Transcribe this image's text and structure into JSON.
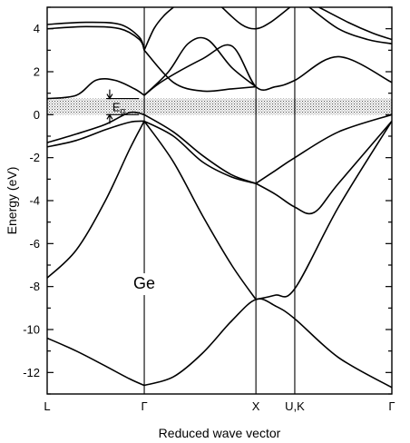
{
  "chart_data": {
    "type": "line",
    "title": "",
    "xlabel": "Reduced wave vector",
    "ylabel": "Energy (eV)",
    "ylim": [
      -13,
      5
    ],
    "yticks": [
      4,
      2,
      0,
      -2,
      -4,
      -6,
      -8,
      -10,
      -12
    ],
    "ytick_labels": [
      "4",
      "2",
      "0",
      "-2",
      "-4",
      "-6",
      "-8",
      "-10",
      "-12"
    ],
    "k_points": [
      {
        "label": "L",
        "x": 0.0
      },
      {
        "label": "Γ",
        "x": 1.0
      },
      {
        "label": "X",
        "x": 2.15
      },
      {
        "label": "U,K",
        "x": 2.55
      },
      {
        "label": "Γ",
        "x": 3.55
      }
    ],
    "annotations": [
      {
        "text": "Ge",
        "x": 1.0,
        "y": -8.1
      },
      {
        "text": "Eg",
        "x": 0.7,
        "y": 0.35
      }
    ],
    "band_gap": {
      "from": 0.0,
      "to": 0.75,
      "label": "Eg"
    },
    "series": [
      {
        "x": [
          0,
          0.3,
          0.6,
          0.85,
          1.0
        ],
        "y": [
          -10.4,
          -11.0,
          -11.7,
          -12.3,
          -12.6
        ]
      },
      {
        "x": [
          1.0,
          1.3,
          1.6,
          1.9,
          2.15,
          2.35,
          2.55,
          3.0,
          3.55
        ],
        "y": [
          -12.6,
          -12.2,
          -11.1,
          -9.6,
          -8.6,
          -8.9,
          -9.5,
          -11.3,
          -12.7
        ]
      },
      {
        "x": [
          0,
          0.3,
          0.6,
          0.85,
          1.0
        ],
        "y": [
          -7.6,
          -6.3,
          -4.0,
          -1.6,
          -0.3
        ]
      },
      {
        "x": [
          1.0,
          1.3,
          1.6,
          1.9,
          2.15
        ],
        "y": [
          -0.3,
          -2.2,
          -4.7,
          -7.0,
          -8.6
        ]
      },
      {
        "x": [
          2.15,
          2.35,
          2.55,
          3.0,
          3.55
        ],
        "y": [
          -8.6,
          -8.4,
          -8.1,
          -4.3,
          -0.3
        ]
      },
      {
        "x": [
          0,
          0.3,
          0.6,
          0.85,
          1.0
        ],
        "y": [
          -1.5,
          -1.2,
          -0.7,
          -0.35,
          -0.3
        ]
      },
      {
        "x": [
          1.0,
          1.3,
          1.6,
          1.9,
          2.15
        ],
        "y": [
          -0.3,
          -1.0,
          -2.2,
          -2.9,
          -3.2
        ]
      },
      {
        "x": [
          2.15,
          2.35,
          2.55,
          2.75,
          3.0,
          3.55
        ],
        "y": [
          -3.2,
          -3.7,
          -4.3,
          -4.55,
          -3.2,
          -0.3
        ]
      },
      {
        "x": [
          0,
          0.3,
          0.6,
          0.85,
          1.0
        ],
        "y": [
          -1.3,
          -0.9,
          -0.45,
          0.1,
          0.0
        ]
      },
      {
        "x": [
          1.0,
          1.3,
          1.6,
          1.9,
          2.15
        ],
        "y": [
          0.0,
          -0.8,
          -1.9,
          -2.8,
          -3.2
        ]
      },
      {
        "x": [
          2.15,
          2.35,
          2.55,
          3.0,
          3.55
        ],
        "y": [
          -3.2,
          -2.6,
          -2.0,
          -0.8,
          0.0
        ]
      },
      {
        "x": [
          0,
          0.3,
          0.5,
          0.7,
          0.9,
          1.0
        ],
        "y": [
          0.75,
          0.9,
          1.6,
          1.6,
          1.2,
          0.9
        ]
      },
      {
        "x": [
          1.0,
          1.25,
          1.45,
          1.65,
          1.9,
          2.15
        ],
        "y": [
          0.9,
          2.0,
          3.3,
          3.5,
          2.2,
          1.3
        ]
      },
      {
        "x": [
          1.0,
          1.2,
          1.6,
          1.9,
          2.15,
          2.35,
          2.55,
          3.0,
          3.55
        ],
        "y": [
          0.9,
          1.6,
          2.6,
          3.2,
          1.3,
          1.3,
          1.6,
          2.7,
          1.5
        ]
      },
      {
        "x": [
          1.0,
          1.3,
          1.6,
          1.9,
          2.15
        ],
        "y": [
          3.0,
          1.5,
          1.1,
          1.2,
          1.3
        ]
      },
      {
        "x": [
          0,
          0.4,
          0.75,
          0.95,
          1.0
        ],
        "y": [
          4.2,
          4.3,
          4.2,
          3.6,
          3.0
        ]
      },
      {
        "x": [
          0,
          0.4,
          0.75,
          0.95,
          1.0
        ],
        "y": [
          4.0,
          4.1,
          4.0,
          3.5,
          3.0
        ]
      },
      {
        "x": [
          1.0,
          1.1,
          1.2,
          1.3
        ],
        "y": [
          3.0,
          4.0,
          4.6,
          5.0
        ]
      },
      {
        "x": [
          1.8,
          2.0,
          2.15,
          2.3,
          2.5
        ],
        "y": [
          5.0,
          4.2,
          4.0,
          4.3,
          5.0
        ]
      },
      {
        "x": [
          2.8,
          3.1,
          3.35,
          3.55
        ],
        "y": [
          5.0,
          4.3,
          3.8,
          3.5
        ]
      },
      {
        "x": [
          2.7,
          3.0,
          3.3,
          3.55
        ],
        "y": [
          5.0,
          4.0,
          3.5,
          3.3
        ]
      }
    ]
  }
}
